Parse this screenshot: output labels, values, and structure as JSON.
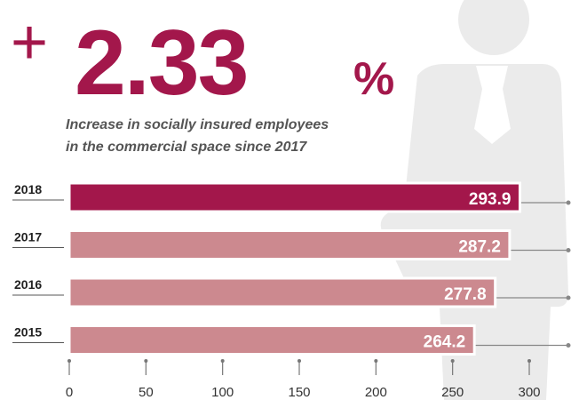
{
  "chart_data": {
    "type": "bar",
    "orientation": "horizontal",
    "headline_sign": "+",
    "headline_number": "2.33",
    "headline_unit": "%",
    "subtitle": [
      "Increase in socially insured employees",
      "in the commercial space since 2017"
    ],
    "categories": [
      "2018",
      "2017",
      "2016",
      "2015"
    ],
    "values": [
      293.9,
      287.2,
      277.8,
      264.2
    ],
    "colors": [
      "#a3174b",
      "#cc898f",
      "#cc898f",
      "#cc898f"
    ],
    "xlim": [
      0,
      300
    ],
    "xticks": [
      0,
      50,
      100,
      150,
      200,
      250,
      300
    ],
    "grid": false
  }
}
